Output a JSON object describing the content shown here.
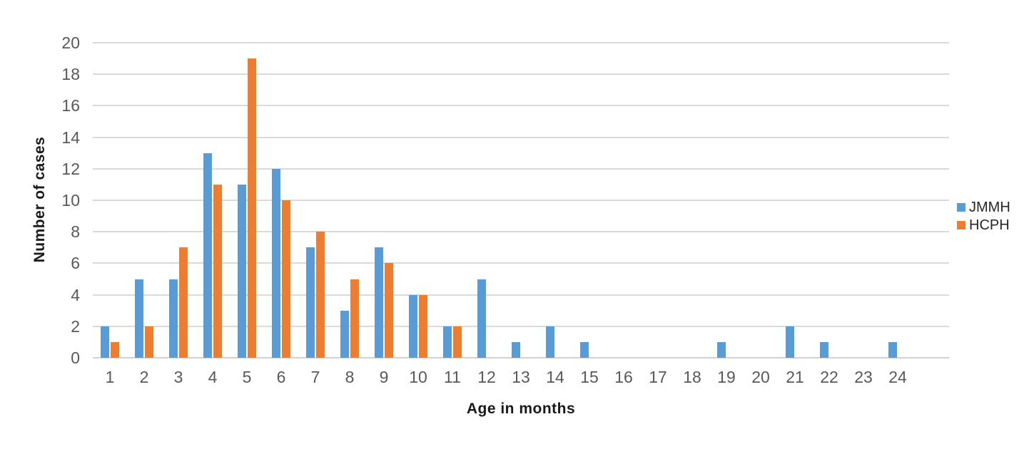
{
  "chart_data": {
    "type": "bar",
    "title": "",
    "xlabel": "Age in months",
    "ylabel": "Number of cases",
    "categories": [
      "1",
      "2",
      "3",
      "4",
      "5",
      "6",
      "7",
      "8",
      "9",
      "10",
      "11",
      "12",
      "13",
      "14",
      "15",
      "16",
      "17",
      "18",
      "19",
      "20",
      "21",
      "22",
      "23",
      "24"
    ],
    "series": [
      {
        "name": "JMMH",
        "color": "#5B9BD5",
        "values": [
          2,
          5,
          5,
          13,
          11,
          12,
          7,
          3,
          7,
          4,
          2,
          5,
          1,
          2,
          1,
          0,
          0,
          0,
          1,
          0,
          2,
          1,
          0,
          1
        ]
      },
      {
        "name": "HCPH",
        "color": "#ED7D31",
        "values": [
          1,
          2,
          7,
          11,
          19,
          10,
          8,
          5,
          6,
          4,
          2,
          0,
          0,
          0,
          0,
          0,
          0,
          0,
          0,
          0,
          0,
          0,
          0,
          0
        ]
      }
    ],
    "ylim": [
      0,
      20
    ],
    "yticks": [
      0,
      2,
      4,
      6,
      8,
      10,
      12,
      14,
      16,
      18,
      20
    ],
    "grid": "horizontal",
    "legend_position": "right-middle",
    "colors": {
      "gridline": "#D9D9D9",
      "axis_line": "#D2D2D2",
      "tick_label": "#595959",
      "axis_title": "#1A1A1A",
      "legend_text": "#262626",
      "background": "#FFFFFF"
    }
  }
}
